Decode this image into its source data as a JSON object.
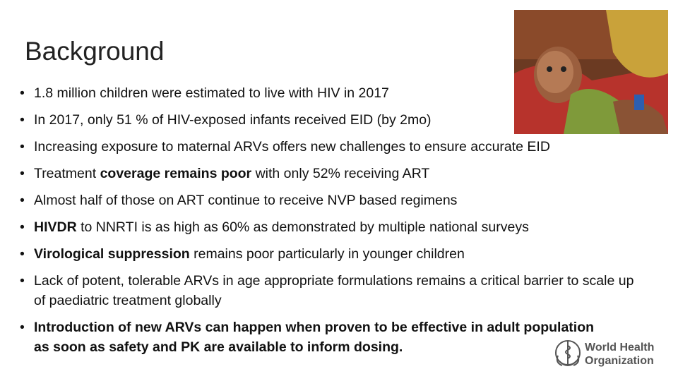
{
  "title": "Background",
  "bullets": [
    {
      "segments": [
        {
          "text": "1.8 million children were estimated to live with HIV in 2017",
          "bold": false
        }
      ]
    },
    {
      "segments": [
        {
          "text": "In 2017, only 51 % of HIV-exposed infants received EID (by 2mo)",
          "bold": false
        }
      ]
    },
    {
      "segments": [
        {
          "text": "Increasing exposure to maternal ARVs offers new challenges to ensure accurate EID",
          "bold": false
        }
      ]
    },
    {
      "segments": [
        {
          "text": "Treatment ",
          "bold": false
        },
        {
          "text": "coverage remains poor",
          "bold": true
        },
        {
          "text": " with only 52% receiving ART",
          "bold": false
        }
      ]
    },
    {
      "segments": [
        {
          "text": "Almost half of those on ART continue to receive NVP based regimens",
          "bold": false
        }
      ]
    },
    {
      "segments": [
        {
          "text": "HIVDR",
          "bold": true
        },
        {
          "text": " to NNRTI is as high as 60% as demonstrated by multiple national surveys",
          "bold": false
        }
      ]
    },
    {
      "segments": [
        {
          "text": "Virological suppression",
          "bold": true
        },
        {
          "text": " remains poor particularly in younger children",
          "bold": false
        }
      ]
    },
    {
      "segments": [
        {
          "text": "Lack of potent, tolerable ARVs in age appropriate formulations remains a critical barrier to scale up of paediatric treatment globally",
          "bold": false
        }
      ]
    },
    {
      "segments": [
        {
          "text": "Introduction of new ARVs can happen when proven to be effective in adult population as soon as safety and PK are available to inform dosing.",
          "bold": true
        }
      ]
    }
  ],
  "logo": {
    "line1": "World Health",
    "line2": "Organization"
  }
}
